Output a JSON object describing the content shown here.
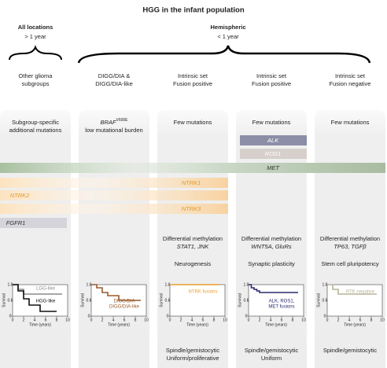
{
  "title": "HGG in the infant population",
  "groups": [
    {
      "name": "All locations",
      "age": "> 1 year"
    },
    {
      "name": "Hemispheric",
      "age": "< 1 year"
    }
  ],
  "columns": [
    {
      "label": [
        "Other glioma",
        "subgroups"
      ],
      "header": [
        "Subgroup-specific",
        "additional mutations"
      ],
      "km": {
        "ylabel": "Survival",
        "xlabel": "Time (years)",
        "xlim": [
          0,
          10
        ],
        "ylim": [
          0,
          1
        ],
        "xticks": [
          0,
          2,
          4,
          6,
          8,
          10
        ],
        "yticks": [
          0,
          0.5,
          {
            "value": 1,
            "label": "1.0"
          }
        ],
        "curves": [
          {
            "name": "LGG-like",
            "color": "#8a8a8a",
            "x": [
              0,
              1,
              2,
              9
            ],
            "y": [
              1,
              0.85,
              0.7,
              0.7
            ]
          },
          {
            "name": "HGG-like",
            "color": "#111111",
            "x": [
              0,
              1,
              2,
              3,
              5,
              8
            ],
            "y": [
              1,
              0.8,
              0.55,
              0.35,
              0.15,
              0.15
            ]
          }
        ]
      }
    },
    {
      "label": [
        "DIGG/DIA &",
        "DIGG/DIA-like"
      ],
      "header": [
        "BRAF",
        "V600E",
        "low mutational burden"
      ],
      "km": {
        "ylabel": "Survival",
        "xlabel": "Time (years)",
        "xlim": [
          0,
          10
        ],
        "ylim": [
          0,
          1
        ],
        "xticks": [
          0,
          2,
          4,
          6,
          8,
          10
        ],
        "yticks": [
          0,
          0.5,
          {
            "value": 1,
            "label": "1.0"
          }
        ],
        "curves": [
          {
            "name": [
              "DIGG/DIA",
              "DIGG/DIA-like"
            ],
            "color": "#9a5a2a",
            "x": [
              0,
              1,
              2,
              3,
              5,
              9
            ],
            "y": [
              1,
              0.9,
              0.75,
              0.65,
              0.5,
              0.5
            ]
          }
        ]
      }
    },
    {
      "label": [
        "Intrinsic set",
        "Fusion positive"
      ],
      "header": [
        "Few mutations"
      ],
      "methylation": [
        "Differential methylation",
        "STAT1, JNK"
      ],
      "process": "Neurogenesis",
      "km": {
        "ylabel": "Survival",
        "xlabel": "Time (years)",
        "xlim": [
          0,
          10
        ],
        "ylim": [
          0,
          1
        ],
        "xticks": [
          0,
          2,
          4,
          6,
          8,
          10
        ],
        "yticks": [
          0,
          0.5,
          {
            "value": 1,
            "label": "1.0"
          }
        ],
        "curves": [
          {
            "name": [
              "NTRK fusions"
            ],
            "color": "#e8a030",
            "x": [
              0,
              9
            ],
            "y": [
              1,
              1
            ]
          }
        ]
      },
      "histology": [
        "Spindle/gemistocytic",
        "Uniform/proliferative"
      ]
    },
    {
      "label": [
        "Intrinsic set",
        "Fusion positive"
      ],
      "header": [
        "Few mutations"
      ],
      "methylation": [
        "Differential methylation",
        "WNT5A, GluRs"
      ],
      "process": "Synaptic plasticity",
      "km": {
        "ylabel": "Survival",
        "xlabel": "Time (years)",
        "xlim": [
          0,
          10
        ],
        "ylim": [
          0,
          1
        ],
        "xticks": [
          0,
          2,
          4,
          6,
          8,
          10
        ],
        "yticks": [
          0,
          0.5,
          {
            "value": 1,
            "label": "1.0"
          }
        ],
        "curves": [
          {
            "name": [
              "ALK, ROS1,",
              "MET fusions"
            ],
            "color": "#2a2a70",
            "x": [
              0,
              0.5,
              1,
              1.5,
              2,
              9
            ],
            "y": [
              1,
              0.9,
              0.85,
              0.8,
              0.75,
              0.75
            ]
          }
        ]
      },
      "histology": [
        "Spindle/gemistocytic",
        "Uniform"
      ]
    },
    {
      "label": [
        "Intrinsic set",
        "Fusion negative"
      ],
      "header": [
        "Few mutations"
      ],
      "methylation": [
        "Differential methylation",
        "TP63, TGFβ"
      ],
      "process": "Stem cell pluripotency",
      "km": {
        "ylabel": "Survival",
        "xlabel": "Time (years)",
        "xlim": [
          0,
          10
        ],
        "ylim": [
          0,
          1
        ],
        "xticks": [
          0,
          2,
          4,
          6,
          8,
          10
        ],
        "yticks": [
          0,
          0.5,
          {
            "value": 1,
            "label": "1.0"
          }
        ],
        "curves": [
          {
            "name": [
              "RTK negative"
            ],
            "color": "#b8b49a",
            "x": [
              0,
              1,
              2,
              9
            ],
            "y": [
              1,
              0.85,
              0.7,
              0.7
            ]
          }
        ]
      },
      "histology": [
        "Spindle/gemistocytic"
      ]
    }
  ],
  "fusions": [
    "ALK",
    "ROS1",
    "MET",
    "NTRK1",
    "NTRK2",
    "NTRK3",
    "FGFR1"
  ]
}
